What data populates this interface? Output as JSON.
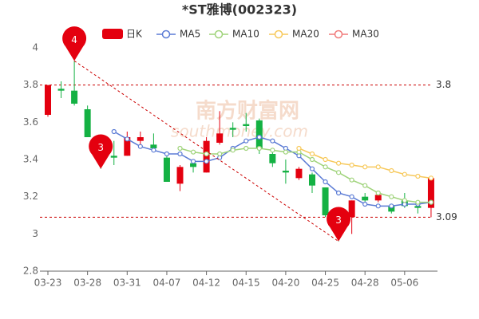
{
  "chart_data": {
    "type": "candlestick",
    "title": "*ST雅博(002323)",
    "watermark": [
      "南方财富网",
      "southmoney.com"
    ],
    "categories": [
      "03-23",
      null,
      null,
      "03-28",
      null,
      null,
      "03-31",
      null,
      null,
      "04-07",
      null,
      null,
      "04-12",
      null,
      null,
      "04-15",
      null,
      null,
      "04-20",
      null,
      null,
      "04-25",
      null,
      null,
      "04-28",
      null,
      null,
      "05-06",
      null,
      null
    ],
    "ylim": [
      2.8,
      4
    ],
    "yticks": [
      2.8,
      3,
      3.2,
      3.4,
      3.6,
      3.8,
      4
    ],
    "up_color": "#e4000f",
    "down_color": "#14b143",
    "candles": {
      "name": "日K",
      "open": [
        3.64,
        3.78,
        3.77,
        3.67,
        3.44,
        3.42,
        3.42,
        3.5,
        3.48,
        3.41,
        3.27,
        3.38,
        3.33,
        3.49,
        3.57,
        3.59,
        3.61,
        3.43,
        3.34,
        3.3,
        3.32,
        3.25,
        3.12,
        3.09,
        3.2,
        3.18,
        3.15,
        3.18,
        3.15,
        3.14
      ],
      "close": [
        3.8,
        3.77,
        3.7,
        3.52,
        3.38,
        3.41,
        3.52,
        3.52,
        3.46,
        3.28,
        3.36,
        3.36,
        3.5,
        3.54,
        3.56,
        3.58,
        3.46,
        3.38,
        3.33,
        3.35,
        3.26,
        3.1,
        3.09,
        3.18,
        3.18,
        3.21,
        3.12,
        3.15,
        3.14,
        3.3
      ],
      "high": [
        3.8,
        3.82,
        3.93,
        3.69,
        3.46,
        3.5,
        3.55,
        3.55,
        3.54,
        3.42,
        3.37,
        3.4,
        3.52,
        3.66,
        3.6,
        3.65,
        3.62,
        3.46,
        3.4,
        3.36,
        3.33,
        3.25,
        3.14,
        3.18,
        3.22,
        3.21,
        3.16,
        3.22,
        3.16,
        3.3
      ],
      "low": [
        3.63,
        3.73,
        3.69,
        3.52,
        3.35,
        3.37,
        3.42,
        3.48,
        3.44,
        3.28,
        3.23,
        3.33,
        3.33,
        3.48,
        3.52,
        3.55,
        3.43,
        3.36,
        3.27,
        3.29,
        3.22,
        3.09,
        2.96,
        3.0,
        3.17,
        3.17,
        3.11,
        3.14,
        3.11,
        3.09
      ]
    },
    "series": [
      {
        "name": "MA5",
        "color": "#5b7bd5",
        "values": [
          null,
          null,
          null,
          null,
          null,
          3.55,
          3.51,
          3.47,
          3.45,
          3.43,
          3.43,
          3.39,
          3.39,
          3.41,
          3.46,
          3.5,
          3.52,
          3.5,
          3.46,
          3.42,
          3.35,
          3.28,
          3.22,
          3.2,
          3.16,
          3.15,
          3.15,
          3.16,
          3.16,
          3.17
        ]
      },
      {
        "name": "MA10",
        "color": "#9fd37a",
        "values": [
          null,
          null,
          null,
          null,
          null,
          null,
          null,
          null,
          null,
          null,
          3.46,
          3.44,
          3.43,
          3.43,
          3.45,
          3.46,
          3.46,
          3.45,
          3.44,
          3.44,
          3.4,
          3.36,
          3.33,
          3.29,
          3.26,
          3.22,
          3.2,
          3.18,
          3.17,
          3.17
        ]
      },
      {
        "name": "MA20",
        "color": "#f7c95b",
        "values": [
          null,
          null,
          null,
          null,
          null,
          null,
          null,
          null,
          null,
          null,
          null,
          null,
          null,
          null,
          null,
          null,
          null,
          null,
          null,
          3.46,
          3.43,
          3.4,
          3.38,
          3.37,
          3.36,
          3.36,
          3.34,
          3.32,
          3.31,
          3.3
        ]
      },
      {
        "name": "MA30",
        "color": "#f07a7a",
        "values": [
          null,
          null,
          null,
          null,
          null,
          null,
          null,
          null,
          null,
          null,
          null,
          null,
          null,
          null,
          null,
          null,
          null,
          null,
          null,
          null,
          null,
          null,
          null,
          null,
          null,
          null,
          null,
          null,
          null,
          null
        ]
      }
    ],
    "hlines": [
      3.8,
      3.09
    ],
    "annotations": [
      {
        "text": "4",
        "index": 2,
        "value": 3.93
      },
      {
        "text": "3",
        "index": 4,
        "value": 3.35
      },
      {
        "text": "3",
        "index": 22,
        "value": 2.96
      }
    ]
  }
}
